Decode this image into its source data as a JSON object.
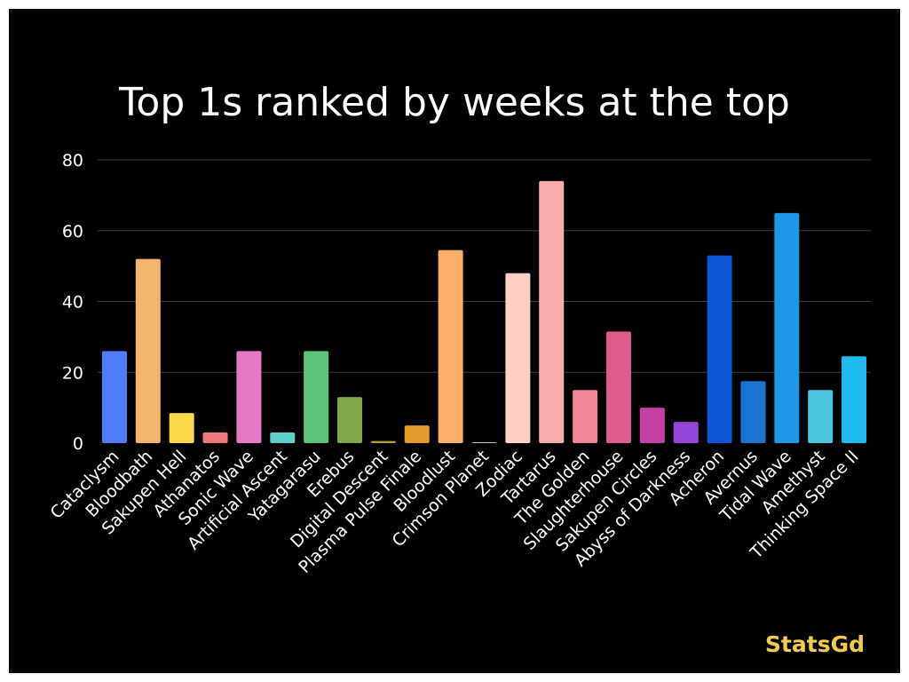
{
  "chart_data": {
    "type": "bar",
    "title": "Top 1s ranked by weeks at the top",
    "xlabel": "",
    "ylabel": "",
    "ylim": [
      0,
      80
    ],
    "yticks": [
      0,
      20,
      40,
      60,
      80
    ],
    "grid": true,
    "categories": [
      "Cataclysm",
      "Bloodbath",
      "Sakupen Hell",
      "Athanatos",
      "Sonic Wave",
      "Artificial Ascent",
      "Yatagarasu",
      "Erebus",
      "Digital Descent",
      "Plasma Pulse Finale",
      "Bloodlust",
      "Crimson Planet",
      "Zodiac",
      "Tartarus",
      "The Golden",
      "Slaughterhouse",
      "Sakupen Circles",
      "Abyss of Darkness",
      "Acheron",
      "Avernus",
      "Tidal Wave",
      "Amethyst",
      "Thinking Space II"
    ],
    "values": [
      26,
      52,
      8.5,
      3,
      26,
      3,
      26,
      13,
      0.6,
      5,
      54.5,
      0.1,
      48,
      74,
      15,
      31.5,
      10,
      6,
      53,
      17.5,
      65,
      15,
      24.5
    ],
    "colors": [
      "#4f7cf8",
      "#f2b56b",
      "#fcd748",
      "#f07a7a",
      "#e77ac8",
      "#5ccfcf",
      "#5ec47c",
      "#7ea84a",
      "#b3a230",
      "#e39b2b",
      "#fbae6a",
      "#c0c0c0",
      "#fdd0c3",
      "#fbacac",
      "#f28699",
      "#de5b8e",
      "#c63fa6",
      "#9446d8",
      "#0b57d6",
      "#1a74d4",
      "#1e97e6",
      "#4ec7dc",
      "#1fbaf3"
    ]
  },
  "watermark": "StatsGd",
  "colors": {
    "background": "#000000",
    "grid": "#3a3a3a",
    "text": "#ffffff",
    "watermark": "#f5cc4a"
  }
}
